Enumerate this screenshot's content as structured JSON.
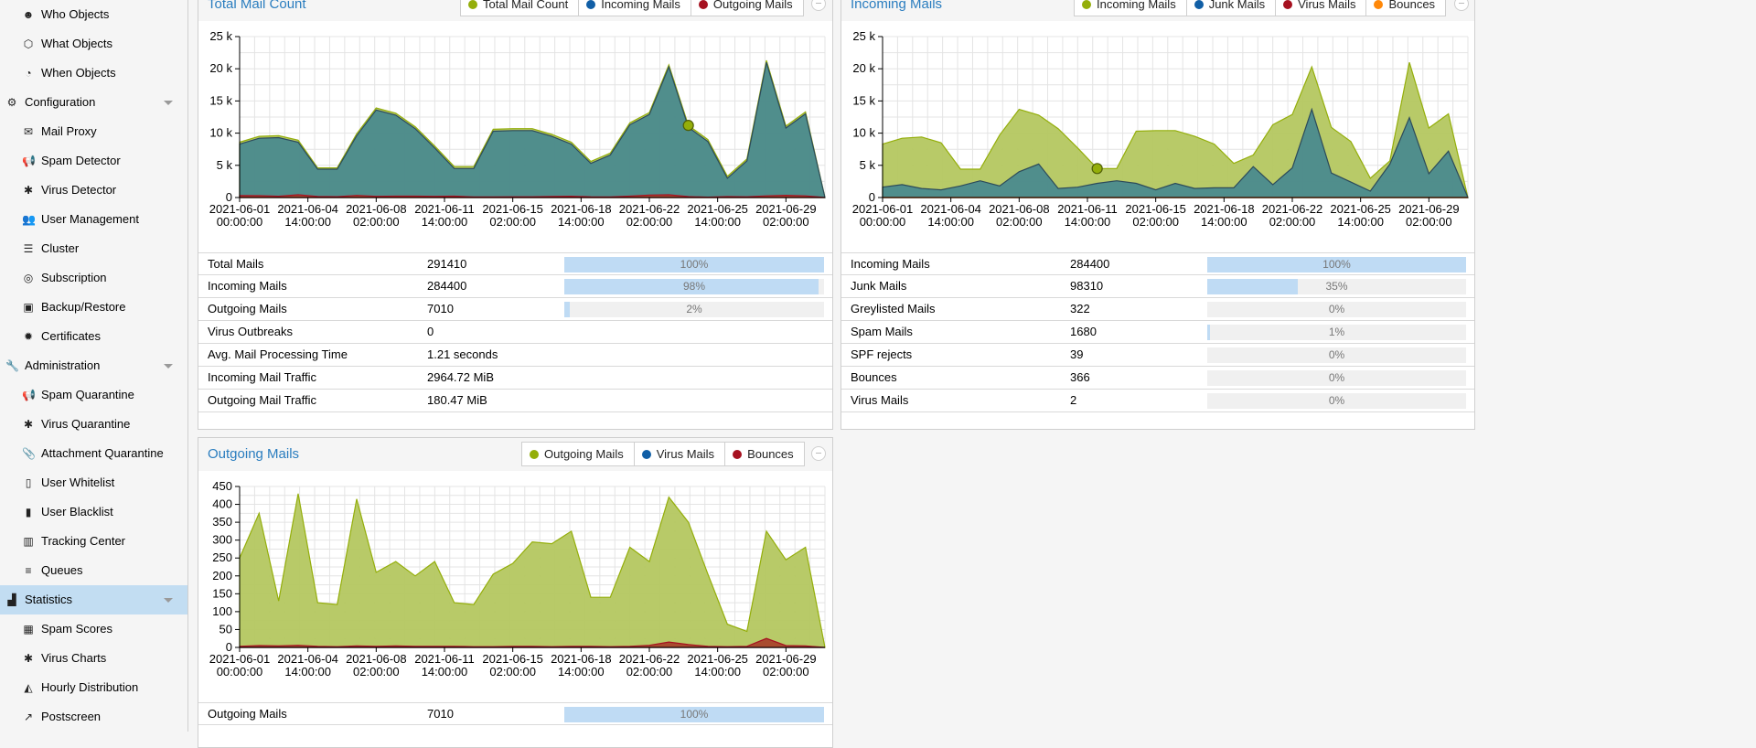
{
  "sidebar": {
    "items": [
      {
        "label": "Who Objects",
        "icon": "user-circle-icon",
        "glyph": "☻",
        "level": "child",
        "name": "who-objects"
      },
      {
        "label": "What Objects",
        "icon": "cube-icon",
        "glyph": "⬡",
        "level": "child",
        "name": "what-objects"
      },
      {
        "label": "When Objects",
        "icon": "clock-icon",
        "glyph": "◔",
        "level": "child",
        "name": "when-objects"
      },
      {
        "label": "Configuration",
        "icon": "gears-icon",
        "glyph": "⚙",
        "level": "group",
        "expander": true,
        "name": "configuration"
      },
      {
        "label": "Mail Proxy",
        "icon": "envelope-icon",
        "glyph": "✉",
        "level": "child",
        "name": "mail-proxy"
      },
      {
        "label": "Spam Detector",
        "icon": "bullhorn-icon",
        "glyph": "📢",
        "level": "child",
        "name": "spam-detector"
      },
      {
        "label": "Virus Detector",
        "icon": "bug-icon",
        "glyph": "✱",
        "level": "child",
        "name": "virus-detector"
      },
      {
        "label": "User Management",
        "icon": "users-icon",
        "glyph": "👥",
        "level": "child",
        "name": "user-management"
      },
      {
        "label": "Cluster",
        "icon": "server-icon",
        "glyph": "☰",
        "level": "child",
        "name": "cluster"
      },
      {
        "label": "Subscription",
        "icon": "life-ring-icon",
        "glyph": "◎",
        "level": "child",
        "name": "subscription"
      },
      {
        "label": "Backup/Restore",
        "icon": "floppy-icon",
        "glyph": "▣",
        "level": "child",
        "name": "backup-restore"
      },
      {
        "label": "Certificates",
        "icon": "certificate-icon",
        "glyph": "✹",
        "level": "child",
        "name": "certificates"
      },
      {
        "label": "Administration",
        "icon": "wrench-icon",
        "glyph": "🔧",
        "level": "group",
        "expander": true,
        "name": "administration"
      },
      {
        "label": "Spam Quarantine",
        "icon": "bullhorn-icon",
        "glyph": "📢",
        "level": "child",
        "name": "spam-quarantine"
      },
      {
        "label": "Virus Quarantine",
        "icon": "bug-icon",
        "glyph": "✱",
        "level": "child",
        "name": "virus-quarantine"
      },
      {
        "label": "Attachment Quarantine",
        "icon": "paperclip-icon",
        "glyph": "📎",
        "level": "child",
        "name": "attachment-quarantine"
      },
      {
        "label": "User Whitelist",
        "icon": "file-icon",
        "glyph": "▯",
        "level": "child",
        "name": "user-whitelist"
      },
      {
        "label": "User Blacklist",
        "icon": "file-filled-icon",
        "glyph": "▮",
        "level": "child",
        "name": "user-blacklist"
      },
      {
        "label": "Tracking Center",
        "icon": "map-icon",
        "glyph": "▥",
        "level": "child",
        "name": "tracking-center"
      },
      {
        "label": "Queues",
        "icon": "list-icon",
        "glyph": "≡",
        "level": "child",
        "name": "queues"
      },
      {
        "label": "Statistics",
        "icon": "bar-chart-icon",
        "glyph": "▟",
        "level": "group",
        "expander": true,
        "active": true,
        "name": "statistics"
      },
      {
        "label": "Spam Scores",
        "icon": "table-icon",
        "glyph": "▦",
        "level": "child",
        "name": "spam-scores"
      },
      {
        "label": "Virus Charts",
        "icon": "bug-icon",
        "glyph": "✱",
        "level": "child",
        "name": "virus-charts"
      },
      {
        "label": "Hourly Distribution",
        "icon": "area-chart-icon",
        "glyph": "◭",
        "level": "child",
        "name": "hourly-distribution"
      },
      {
        "label": "Postscreen",
        "icon": "line-chart-icon",
        "glyph": "↗",
        "level": "child",
        "name": "postscreen"
      }
    ]
  },
  "panels": {
    "total": {
      "title": "Total Mail Count",
      "legend": [
        {
          "label": "Total Mail Count",
          "color": "#94ae0a"
        },
        {
          "label": "Incoming Mails",
          "color": "#115fa6"
        },
        {
          "label": "Outgoing Mails",
          "color": "#a61120"
        }
      ],
      "stats": [
        {
          "label": "Total Mails",
          "value": "291410",
          "percent": 100,
          "percent_text": "100%"
        },
        {
          "label": "Incoming Mails",
          "value": "284400",
          "percent": 98,
          "percent_text": "98%"
        },
        {
          "label": "Outgoing Mails",
          "value": "7010",
          "percent": 2,
          "percent_text": "2%"
        },
        {
          "label": "Virus Outbreaks",
          "value": "0"
        },
        {
          "label": "Avg. Mail Processing Time",
          "value": "1.21 seconds"
        },
        {
          "label": "Incoming Mail Traffic",
          "value": "2964.72 MiB"
        },
        {
          "label": "Outgoing Mail Traffic",
          "value": "180.47 MiB"
        }
      ]
    },
    "incoming": {
      "title": "Incoming Mails",
      "legend": [
        {
          "label": "Incoming Mails",
          "color": "#94ae0a"
        },
        {
          "label": "Junk Mails",
          "color": "#115fa6"
        },
        {
          "label": "Virus Mails",
          "color": "#a61120"
        },
        {
          "label": "Bounces",
          "color": "#ff8809"
        }
      ],
      "stats": [
        {
          "label": "Incoming Mails",
          "value": "284400",
          "percent": 100,
          "percent_text": "100%"
        },
        {
          "label": "Junk Mails",
          "value": "98310",
          "percent": 35,
          "percent_text": "35%"
        },
        {
          "label": "Greylisted Mails",
          "value": "322",
          "percent": 0,
          "percent_text": "0%"
        },
        {
          "label": "Spam Mails",
          "value": "1680",
          "percent": 1,
          "percent_text": "1%"
        },
        {
          "label": "SPF rejects",
          "value": "39",
          "percent": 0,
          "percent_text": "0%"
        },
        {
          "label": "Bounces",
          "value": "366",
          "percent": 0,
          "percent_text": "0%"
        },
        {
          "label": "Virus Mails",
          "value": "2",
          "percent": 0,
          "percent_text": "0%"
        }
      ]
    },
    "outgoing": {
      "title": "Outgoing Mails",
      "legend": [
        {
          "label": "Outgoing Mails",
          "color": "#94ae0a"
        },
        {
          "label": "Virus Mails",
          "color": "#115fa6"
        },
        {
          "label": "Bounces",
          "color": "#a61120"
        }
      ],
      "stats": [
        {
          "label": "Outgoing Mails",
          "value": "7010",
          "percent": 100,
          "percent_text": "100%"
        }
      ]
    }
  },
  "chart_data": [
    {
      "id": "total",
      "type": "area",
      "title": "Total Mail Count",
      "x_tick_labels": [
        [
          "2021-06-01",
          "00:00:00"
        ],
        [
          "2021-06-04",
          "14:00:00"
        ],
        [
          "2021-06-08",
          "02:00:00"
        ],
        [
          "2021-06-11",
          "14:00:00"
        ],
        [
          "2021-06-15",
          "02:00:00"
        ],
        [
          "2021-06-18",
          "14:00:00"
        ],
        [
          "2021-06-22",
          "02:00:00"
        ],
        [
          "2021-06-25",
          "14:00:00"
        ],
        [
          "2021-06-29",
          "02:00:00"
        ]
      ],
      "y_tick_labels": [
        "0",
        "5 k",
        "10 k",
        "15 k",
        "20 k",
        "25 k"
      ],
      "ylim": [
        0,
        25000
      ],
      "grid": true,
      "highlight_index": 23,
      "series": [
        {
          "name": "Total Mail Count",
          "color": "#94ae0a",
          "fill": "#b4c760",
          "values": [
            8600,
            9500,
            9600,
            8900,
            4600,
            4600,
            9900,
            13900,
            13100,
            11000,
            8000,
            4800,
            4800,
            10600,
            10700,
            10700,
            9800,
            8600,
            5600,
            6900,
            11600,
            13200,
            20600,
            11200,
            9000,
            3300,
            6000,
            21300,
            11100,
            13300,
            0
          ]
        },
        {
          "name": "Incoming Mails",
          "color": "#2c4a5a",
          "fill": "#4a8a8e",
          "values": [
            8300,
            9200,
            9300,
            8600,
            4400,
            4400,
            9600,
            13600,
            12800,
            10700,
            7700,
            4500,
            4500,
            10300,
            10400,
            10400,
            9500,
            8300,
            5300,
            6600,
            11300,
            12900,
            20300,
            10900,
            8700,
            3000,
            5700,
            21000,
            10800,
            13000,
            0
          ]
        },
        {
          "name": "Outgoing Mails",
          "color": "#a61120",
          "fill": "#a8442c",
          "values": [
            300,
            280,
            200,
            420,
            150,
            130,
            330,
            180,
            220,
            210,
            180,
            210,
            90,
            90,
            110,
            120,
            170,
            200,
            110,
            100,
            220,
            380,
            420,
            140,
            60,
            140,
            120,
            260,
            340,
            260,
            0
          ]
        }
      ]
    },
    {
      "id": "incoming",
      "type": "area",
      "title": "Incoming Mails",
      "x_tick_labels": [
        [
          "2021-06-01",
          "00:00:00"
        ],
        [
          "2021-06-04",
          "14:00:00"
        ],
        [
          "2021-06-08",
          "02:00:00"
        ],
        [
          "2021-06-11",
          "14:00:00"
        ],
        [
          "2021-06-15",
          "02:00:00"
        ],
        [
          "2021-06-18",
          "14:00:00"
        ],
        [
          "2021-06-22",
          "02:00:00"
        ],
        [
          "2021-06-25",
          "14:00:00"
        ],
        [
          "2021-06-29",
          "02:00:00"
        ]
      ],
      "y_tick_labels": [
        "0",
        "5 k",
        "10 k",
        "15 k",
        "20 k",
        "25 k"
      ],
      "ylim": [
        0,
        25000
      ],
      "grid": true,
      "highlight_index": 11,
      "series": [
        {
          "name": "Incoming Mails",
          "color": "#94ae0a",
          "fill": "#b4c760",
          "values": [
            8300,
            9200,
            9400,
            8500,
            4400,
            4400,
            9700,
            13700,
            12800,
            10700,
            7700,
            4500,
            4500,
            10300,
            10400,
            10400,
            9500,
            8300,
            5300,
            6600,
            11300,
            12900,
            20300,
            10900,
            8700,
            3000,
            5700,
            21000,
            10800,
            13000,
            0
          ]
        },
        {
          "name": "Junk Mails",
          "color": "#2c4a5a",
          "fill": "#4a8a8e",
          "values": [
            1600,
            2000,
            1400,
            1200,
            1800,
            2600,
            1800,
            4000,
            5200,
            1400,
            1600,
            2200,
            2600,
            2200,
            1200,
            2200,
            1400,
            1500,
            1500,
            4800,
            2000,
            4600,
            13700,
            3800,
            2400,
            1000,
            5200,
            12400,
            3700,
            7200,
            0
          ]
        },
        {
          "name": "Virus Mails",
          "color": "#a61120",
          "fill": "#a8442c",
          "values": [
            0,
            0,
            0,
            0,
            0,
            0,
            0,
            0,
            0,
            0,
            0,
            0,
            0,
            0,
            0,
            0,
            0,
            0,
            0,
            0,
            0,
            0,
            0,
            0,
            0,
            0,
            0,
            0,
            0,
            0,
            0
          ]
        },
        {
          "name": "Bounces",
          "color": "#ff8809",
          "fill": "#ffa34a",
          "values": [
            0,
            0,
            0,
            0,
            0,
            0,
            0,
            0,
            0,
            0,
            0,
            0,
            0,
            0,
            0,
            0,
            0,
            0,
            0,
            0,
            0,
            0,
            0,
            0,
            0,
            0,
            0,
            0,
            0,
            0,
            0
          ]
        }
      ]
    },
    {
      "id": "outgoing",
      "type": "area",
      "title": "Outgoing Mails",
      "x_tick_labels": [
        [
          "2021-06-01",
          "00:00:00"
        ],
        [
          "2021-06-04",
          "14:00:00"
        ],
        [
          "2021-06-08",
          "02:00:00"
        ],
        [
          "2021-06-11",
          "14:00:00"
        ],
        [
          "2021-06-15",
          "02:00:00"
        ],
        [
          "2021-06-18",
          "14:00:00"
        ],
        [
          "2021-06-22",
          "02:00:00"
        ],
        [
          "2021-06-25",
          "14:00:00"
        ],
        [
          "2021-06-29",
          "02:00:00"
        ]
      ],
      "y_tick_labels": [
        "0",
        "50",
        "100",
        "150",
        "200",
        "250",
        "300",
        "350",
        "400",
        "450"
      ],
      "ylim": [
        0,
        450
      ],
      "grid": true,
      "series": [
        {
          "name": "Outgoing Mails",
          "color": "#94ae0a",
          "fill": "#b4c760",
          "values": [
            250,
            375,
            130,
            430,
            125,
            120,
            415,
            210,
            240,
            200,
            240,
            125,
            120,
            205,
            235,
            295,
            290,
            325,
            140,
            140,
            280,
            240,
            420,
            350,
            205,
            65,
            45,
            325,
            245,
            280,
            0
          ]
        },
        {
          "name": "Virus Mails",
          "color": "#115fa6",
          "fill": "#4a8a8e",
          "values": [
            0,
            0,
            0,
            0,
            0,
            0,
            0,
            0,
            0,
            0,
            0,
            0,
            0,
            0,
            0,
            0,
            0,
            0,
            0,
            0,
            0,
            0,
            0,
            0,
            0,
            0,
            0,
            0,
            0,
            0,
            0
          ]
        },
        {
          "name": "Bounces",
          "color": "#a61120",
          "fill": "#a8442c",
          "values": [
            3,
            5,
            4,
            6,
            3,
            2,
            4,
            3,
            4,
            3,
            3,
            3,
            2,
            2,
            3,
            3,
            2,
            3,
            3,
            2,
            3,
            6,
            15,
            8,
            3,
            2,
            3,
            25,
            5,
            4,
            0
          ]
        }
      ]
    }
  ]
}
